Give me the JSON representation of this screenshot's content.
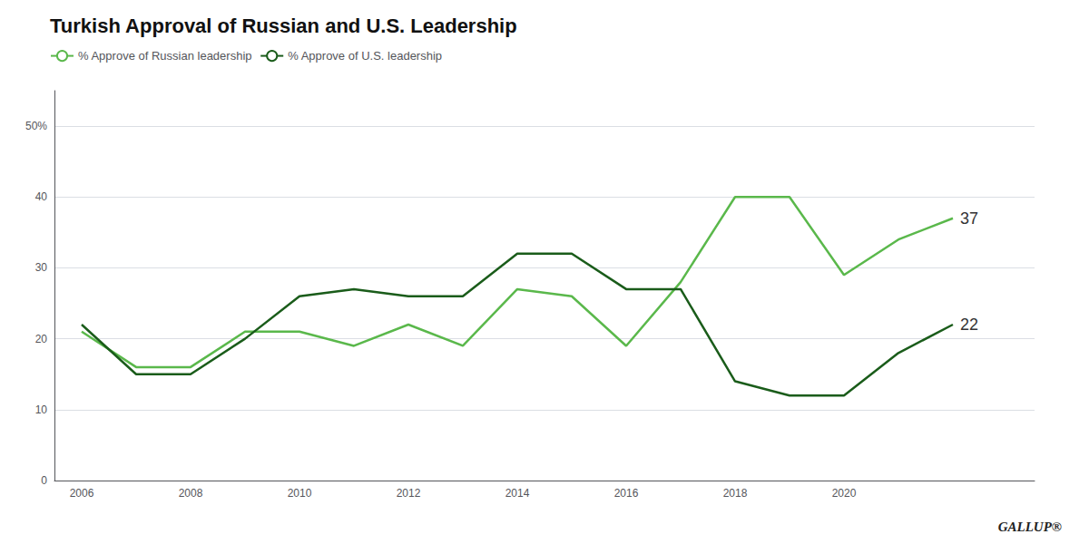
{
  "chart_data": {
    "type": "line",
    "title": "Turkish Approval of Russian and U.S. Leadership",
    "x": [
      2006,
      2007,
      2008,
      2009,
      2010,
      2011,
      2012,
      2013,
      2014,
      2015,
      2016,
      2017,
      2018,
      2019,
      2020,
      2021,
      2022
    ],
    "series": [
      {
        "name": "% Approve of Russian leadership",
        "color": "#5ab84b",
        "values": [
          21,
          16,
          16,
          21,
          21,
          19,
          22,
          19,
          27,
          26,
          19,
          28,
          40,
          40,
          29,
          34,
          37
        ]
      },
      {
        "name": "% Approve of U.S. leadership",
        "color": "#1a5c1a",
        "values": [
          22,
          15,
          15,
          20,
          26,
          27,
          26,
          26,
          32,
          32,
          27,
          27,
          14,
          12,
          12,
          18,
          22
        ]
      }
    ],
    "xlim": [
      2005.5,
      2023.5
    ],
    "xticks": [
      2006,
      2008,
      2010,
      2012,
      2014,
      2016,
      2018,
      2020
    ],
    "ylim": [
      0,
      55
    ],
    "yticks": [
      0,
      10,
      20,
      30,
      40,
      {
        "value": 50,
        "label": "50%"
      }
    ],
    "grid": true,
    "legend": "upper left",
    "annotations": [
      {
        "text": "37",
        "x": 2022,
        "y": 37
      },
      {
        "text": "22",
        "x": 2022,
        "y": 22
      },
      {
        "text": "GALLUP®"
      }
    ]
  }
}
